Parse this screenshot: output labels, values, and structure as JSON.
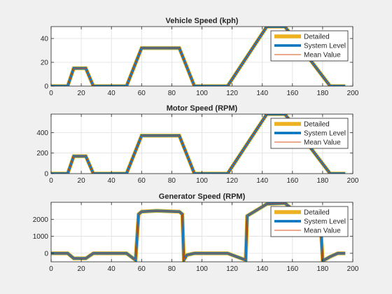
{
  "chart_data": [
    {
      "type": "line",
      "title": "Vehicle Speed (kph)",
      "xlim": [
        0,
        200
      ],
      "ylim": [
        0,
        50
      ],
      "xticks": [
        0,
        20,
        40,
        60,
        80,
        100,
        120,
        140,
        160,
        180,
        200
      ],
      "yticks": [
        0,
        20,
        40
      ],
      "grid": true,
      "legend_position": "top-right",
      "series": [
        {
          "name": "Detailed",
          "color": "#EDB120"
        },
        {
          "name": "System Level",
          "color": "#0072BD"
        },
        {
          "name": "Mean Value",
          "color": "#D95319"
        }
      ],
      "x": [
        0,
        11,
        15,
        20,
        23,
        28,
        50,
        60,
        85,
        95,
        117,
        143,
        155,
        185,
        195
      ],
      "y": [
        0,
        0,
        15,
        15,
        15,
        0,
        0,
        32,
        32,
        0,
        0,
        50,
        50,
        0,
        0
      ]
    },
    {
      "type": "line",
      "title": "Motor Speed (RPM)",
      "xlim": [
        0,
        200
      ],
      "ylim": [
        0,
        580
      ],
      "xticks": [
        0,
        20,
        40,
        60,
        80,
        100,
        120,
        140,
        160,
        180,
        200
      ],
      "yticks": [
        0,
        200,
        400
      ],
      "grid": true,
      "legend_position": "top-right",
      "series": [
        {
          "name": "Detailed",
          "color": "#EDB120"
        },
        {
          "name": "System Level",
          "color": "#0072BD"
        },
        {
          "name": "Mean Value",
          "color": "#D95319"
        }
      ],
      "x": [
        0,
        11,
        15,
        20,
        23,
        28,
        50,
        60,
        85,
        95,
        117,
        143,
        155,
        185,
        195
      ],
      "y": [
        0,
        0,
        170,
        170,
        170,
        0,
        0,
        370,
        370,
        0,
        0,
        580,
        580,
        0,
        0
      ]
    },
    {
      "type": "line",
      "title": "Generator Speed (RPM)",
      "xlim": [
        0,
        200
      ],
      "ylim": [
        -500,
        3000
      ],
      "xticks": [
        0,
        20,
        40,
        60,
        80,
        100,
        120,
        140,
        160,
        180,
        200
      ],
      "yticks": [
        0,
        1000,
        2000
      ],
      "grid": true,
      "legend_position": "top-right",
      "series": [
        {
          "name": "Detailed",
          "color": "#EDB120"
        },
        {
          "name": "System Level",
          "color": "#0072BD"
        },
        {
          "name": "Mean Value",
          "color": "#D95319"
        }
      ],
      "x": [
        0,
        11,
        15,
        20,
        23,
        28,
        50,
        56,
        58,
        60,
        70,
        85,
        87,
        88,
        90,
        95,
        117,
        129,
        130,
        143,
        155,
        179,
        180,
        181,
        185,
        190,
        195
      ],
      "y": [
        0,
        0,
        -300,
        -300,
        -300,
        0,
        0,
        -400,
        2300,
        2450,
        2500,
        2450,
        2300,
        -400,
        -100,
        0,
        0,
        -400,
        2200,
        2900,
        2950,
        1200,
        -400,
        -400,
        -200,
        0,
        0
      ]
    }
  ]
}
